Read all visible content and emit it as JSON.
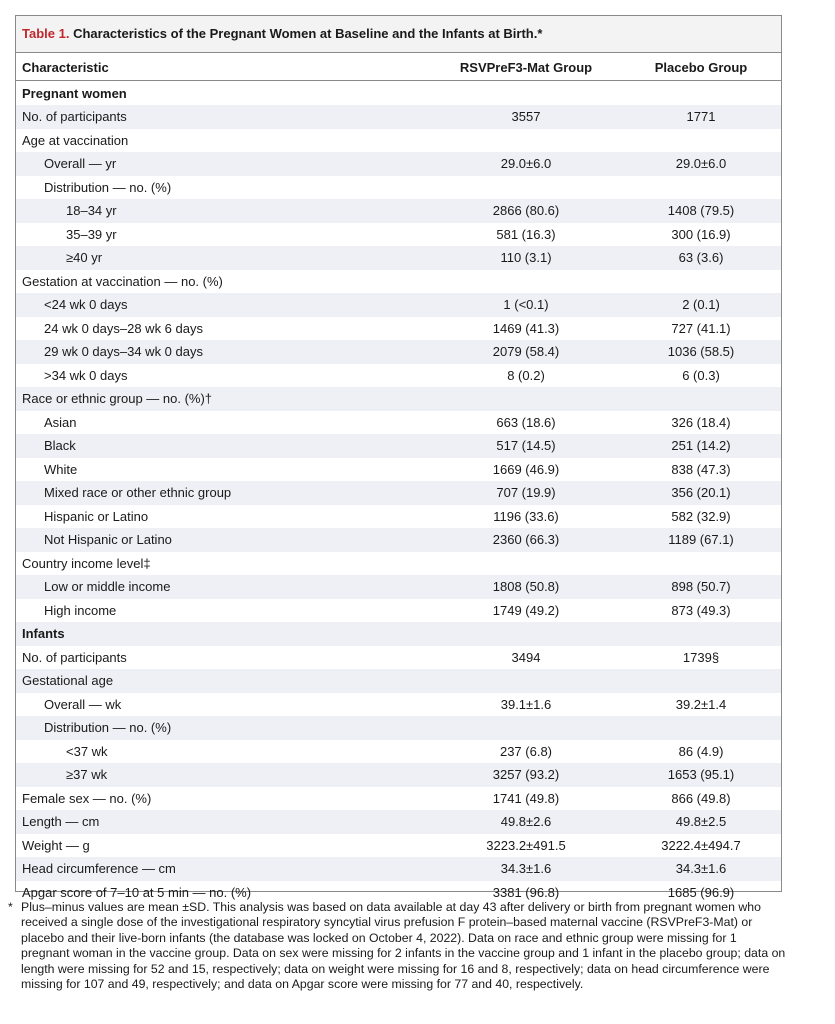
{
  "title": {
    "number": "Table 1.",
    "text": "Characteristics of the Pregnant Women at Baseline and the Infants at Birth.*"
  },
  "table": {
    "header": [
      "Characteristic",
      "RSVPreF3-Mat Group",
      "Placebo Group"
    ],
    "rows": [
      [
        "Pregnant women"
      ],
      [
        "No. of participants",
        "3557",
        "1771"
      ],
      [
        "Age at vaccination"
      ],
      [
        "Overall — yr",
        "29.0±6.0",
        "29.0±6.0"
      ],
      [
        "Distribution — no. (%)"
      ],
      [
        "18–34 yr",
        "2866 (80.6)",
        "1408 (79.5)"
      ],
      [
        "35–39 yr",
        "581 (16.3)",
        "300 (16.9)"
      ],
      [
        "≥40 yr",
        "110 (3.1)",
        "63 (3.6)"
      ],
      [
        "Gestation at vaccination — no. (%)"
      ],
      [
        "<24 wk 0 days",
        "1 (<0.1)",
        "2 (0.1)"
      ],
      [
        "24 wk 0 days–28 wk 6 days",
        "1469 (41.3)",
        "727 (41.1)"
      ],
      [
        "29 wk 0 days–34 wk 0 days",
        "2079 (58.4)",
        "1036 (58.5)"
      ],
      [
        ">34 wk 0 days",
        "8 (0.2)",
        "6 (0.3)"
      ],
      [
        "Race or ethnic group — no. (%)†"
      ],
      [
        "Asian",
        "663 (18.6)",
        "326 (18.4)"
      ],
      [
        "Black",
        "517 (14.5)",
        "251 (14.2)"
      ],
      [
        "White",
        "1669 (46.9)",
        "838 (47.3)"
      ],
      [
        "Mixed race or other ethnic group",
        "707 (19.9)",
        "356 (20.1)"
      ],
      [
        "Hispanic or Latino",
        "1196 (33.6)",
        "582 (32.9)"
      ],
      [
        "Not Hispanic or Latino",
        "2360 (66.3)",
        "1189 (67.1)"
      ],
      [
        "Country income level‡"
      ],
      [
        "Low or middle income",
        "1808 (50.8)",
        "898 (50.7)"
      ],
      [
        "High income",
        "1749 (49.2)",
        "873 (49.3)"
      ],
      [
        "Infants"
      ],
      [
        "No. of participants",
        "3494",
        "1739§"
      ],
      [
        "Gestational age"
      ],
      [
        "Overall — wk",
        "39.1±1.6",
        "39.2±1.4"
      ],
      [
        "Distribution — no. (%)"
      ],
      [
        "<37 wk",
        "237 (6.8)",
        "86 (4.9)"
      ],
      [
        "≥37 wk",
        "3257 (93.2)",
        "1653 (95.1)"
      ],
      [
        "Female sex — no. (%)",
        "1741 (49.8)",
        "866 (49.8)"
      ],
      [
        "Length — cm",
        "49.8±2.6",
        "49.8±2.5"
      ],
      [
        "Weight — g",
        "3223.2±491.5",
        "3222.4±494.7"
      ],
      [
        "Head circumference — cm",
        "34.3±1.6",
        "34.3±1.6"
      ],
      [
        "Apgar score of 7–10 at 5 min — no. (%)",
        "3381 (96.8)",
        "1685 (96.9)"
      ]
    ]
  },
  "footnote": {
    "marker": "*",
    "text": "Plus–minus values are mean ±SD. This analysis was based on data available at day 43 after delivery or birth from pregnant women who received a single dose of the investigational respiratory syncytial virus prefusion F protein–based maternal vaccine (RSVPreF3-Mat) or placebo and their live-born infants (the database was locked on October 4, 2022). Data on race and ethnic group were missing for 1 pregnant woman in the vaccine group. Data on sex were missing for 2 infants in the vaccine group and 1 infant in the placebo group; data on length were missing for 52 and 15, respectively; data on weight were missing for 16 and 8, respectively; data on head circumference were missing for 107 and 49, respectively; and data on Apgar score were missing for 77 and 40, respectively."
  }
}
